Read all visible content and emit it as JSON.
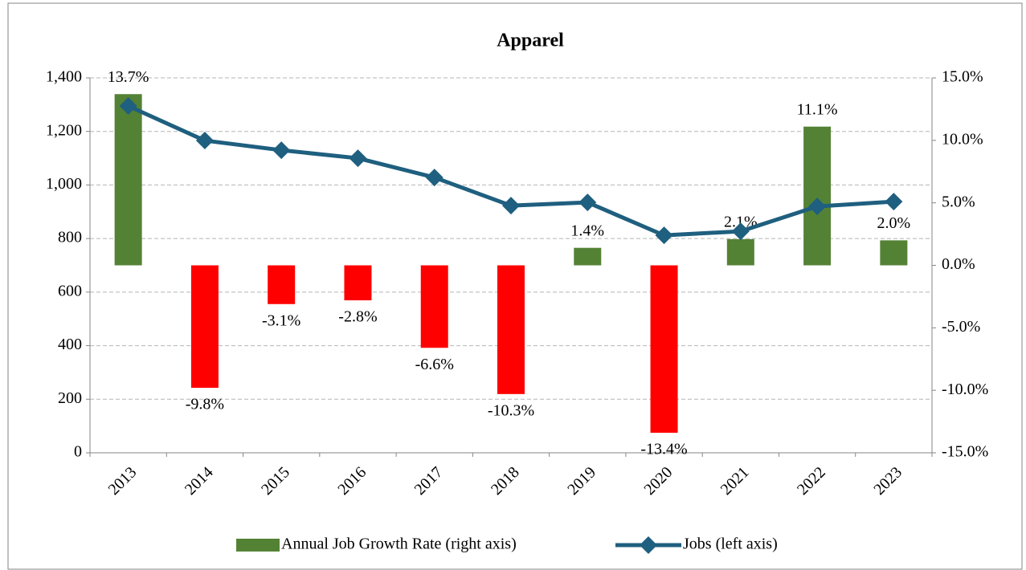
{
  "chart_data": {
    "type": "bar+line",
    "title": "Apparel",
    "categories": [
      "2013",
      "2014",
      "2015",
      "2016",
      "2017",
      "2018",
      "2019",
      "2020",
      "2021",
      "2022",
      "2023"
    ],
    "series": [
      {
        "name": "Annual Job Growth Rate (right axis)",
        "type": "bar",
        "axis": "y2",
        "color": "#548235",
        "negative_color": "#ff0000",
        "values": [
          13.7,
          -9.8,
          -3.1,
          -2.8,
          -6.6,
          -10.3,
          1.4,
          -13.4,
          2.1,
          11.1,
          2.0
        ],
        "value_labels": [
          "13.7%",
          "-9.8%",
          "-3.1%",
          "-2.8%",
          "-6.6%",
          "-10.3%",
          "1.4%",
          "-13.4%",
          "2.1%",
          "11.1%",
          "2.0%"
        ]
      },
      {
        "name": "Jobs (left axis)",
        "type": "line",
        "axis": "y",
        "color": "#1f5f7f",
        "values": [
          1295,
          1166,
          1130,
          1100,
          1028,
          923,
          935,
          812,
          827,
          920,
          938
        ]
      }
    ],
    "ylim": [
      0,
      1400
    ],
    "yticks": [
      0,
      200,
      400,
      600,
      800,
      {
        "value": 1000,
        "label": "1,000"
      },
      {
        "value": 1200,
        "label": "1,200"
      },
      {
        "value": 1400,
        "label": "1,400"
      }
    ],
    "y2lim": [
      -15,
      15
    ],
    "y2ticks": [
      {
        "value": -15,
        "label": "-15.0%"
      },
      {
        "value": -10,
        "label": "-10.0%"
      },
      {
        "value": -5,
        "label": "-5.0%"
      },
      {
        "value": 0,
        "label": "0.0%"
      },
      {
        "value": 5,
        "label": "5.0%"
      },
      {
        "value": 10,
        "label": "10.0%"
      },
      {
        "value": 15,
        "label": "15.0%"
      }
    ],
    "grid": true,
    "legend": "bottom"
  }
}
